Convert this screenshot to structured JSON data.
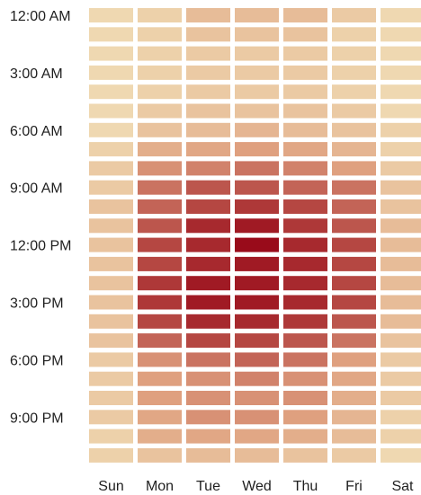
{
  "chart_data": {
    "type": "heatmap",
    "title": "",
    "xlabel": "",
    "ylabel": "",
    "x_categories": [
      "Sun",
      "Mon",
      "Tue",
      "Wed",
      "Thu",
      "Fri",
      "Sat"
    ],
    "y_categories": [
      "12:00 AM",
      "1:00 AM",
      "2:00 AM",
      "3:00 AM",
      "4:00 AM",
      "5:00 AM",
      "6:00 AM",
      "7:00 AM",
      "8:00 AM",
      "9:00 AM",
      "10:00 AM",
      "11:00 AM",
      "12:00 PM",
      "1:00 PM",
      "2:00 PM",
      "3:00 PM",
      "4:00 PM",
      "5:00 PM",
      "6:00 PM",
      "7:00 PM",
      "8:00 PM",
      "9:00 PM",
      "10:00 PM",
      "11:00 PM"
    ],
    "y_tick_labels": [
      {
        "row": 0,
        "label": "12:00 AM"
      },
      {
        "row": 3,
        "label": "3:00 AM"
      },
      {
        "row": 6,
        "label": "6:00 AM"
      },
      {
        "row": 9,
        "label": "9:00 AM"
      },
      {
        "row": 12,
        "label": "12:00 PM"
      },
      {
        "row": 15,
        "label": "3:00 PM"
      },
      {
        "row": 18,
        "label": "6:00 PM"
      },
      {
        "row": 21,
        "label": "9:00 PM"
      }
    ],
    "values": [
      [
        0.1,
        0.15,
        0.3,
        0.3,
        0.3,
        0.2,
        0.1
      ],
      [
        0.1,
        0.15,
        0.25,
        0.25,
        0.25,
        0.15,
        0.1
      ],
      [
        0.1,
        0.15,
        0.2,
        0.2,
        0.2,
        0.15,
        0.1
      ],
      [
        0.1,
        0.15,
        0.2,
        0.2,
        0.2,
        0.15,
        0.1
      ],
      [
        0.1,
        0.15,
        0.2,
        0.2,
        0.2,
        0.15,
        0.1
      ],
      [
        0.1,
        0.2,
        0.25,
        0.25,
        0.25,
        0.2,
        0.1
      ],
      [
        0.1,
        0.25,
        0.3,
        0.35,
        0.3,
        0.25,
        0.15
      ],
      [
        0.15,
        0.4,
        0.45,
        0.5,
        0.45,
        0.35,
        0.15
      ],
      [
        0.2,
        0.55,
        0.6,
        0.65,
        0.6,
        0.5,
        0.2
      ],
      [
        0.2,
        0.65,
        0.75,
        0.75,
        0.7,
        0.65,
        0.25
      ],
      [
        0.25,
        0.7,
        0.8,
        0.85,
        0.8,
        0.7,
        0.25
      ],
      [
        0.25,
        0.75,
        0.9,
        0.95,
        0.85,
        0.75,
        0.3
      ],
      [
        0.25,
        0.8,
        0.9,
        1.0,
        0.9,
        0.8,
        0.3
      ],
      [
        0.25,
        0.8,
        0.9,
        0.95,
        0.9,
        0.8,
        0.3
      ],
      [
        0.25,
        0.85,
        0.95,
        0.95,
        0.9,
        0.8,
        0.3
      ],
      [
        0.25,
        0.85,
        0.95,
        0.95,
        0.9,
        0.8,
        0.3
      ],
      [
        0.25,
        0.8,
        0.9,
        0.9,
        0.85,
        0.75,
        0.3
      ],
      [
        0.25,
        0.7,
        0.8,
        0.8,
        0.75,
        0.65,
        0.25
      ],
      [
        0.2,
        0.55,
        0.65,
        0.7,
        0.65,
        0.5,
        0.2
      ],
      [
        0.2,
        0.5,
        0.55,
        0.6,
        0.55,
        0.45,
        0.2
      ],
      [
        0.2,
        0.5,
        0.55,
        0.55,
        0.55,
        0.4,
        0.2
      ],
      [
        0.2,
        0.45,
        0.55,
        0.55,
        0.5,
        0.35,
        0.15
      ],
      [
        0.15,
        0.4,
        0.45,
        0.45,
        0.4,
        0.3,
        0.15
      ],
      [
        0.15,
        0.25,
        0.3,
        0.3,
        0.25,
        0.2,
        0.1
      ]
    ],
    "color_scale": {
      "low": "#f3e6bd",
      "mid": "#dfa07f",
      "high": "#990b1a"
    },
    "grid": false,
    "legend": "none"
  }
}
